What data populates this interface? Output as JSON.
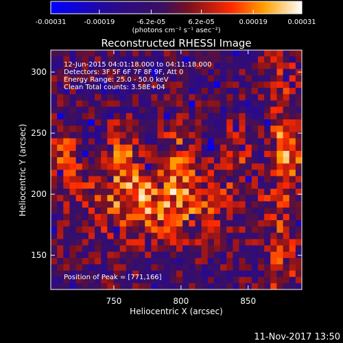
{
  "colorbar": {
    "tick_labels": [
      "-0.00031",
      "-0.00019",
      "-6.2e-05",
      "6.2e-05",
      "0.00019",
      "0.00031"
    ],
    "tick_values": [
      -0.00031,
      -0.00019,
      -6.2e-05,
      6.2e-05,
      0.00019,
      0.00031
    ],
    "range": [
      -0.00031,
      0.00031
    ],
    "units_label": "(photons cm⁻² s⁻¹ asec⁻²)"
  },
  "chart_data": {
    "type": "heatmap",
    "title": "Reconstructed RHESSI Image",
    "xlabel": "Heliocentric X (arcsec)",
    "ylabel": "Heliocentric Y (arcsec)",
    "xlim": [
      703,
      890
    ],
    "ylim": [
      122,
      318
    ],
    "x_ticks": [
      750,
      800,
      850
    ],
    "y_ticks": [
      150,
      200,
      250,
      300
    ],
    "annotations": [
      "12-Jun-2015 04:01:18.000 to 04:11:18.000",
      "Detectors: 3F 5F 6F 7F 8F 9F, Att 0",
      "Energy Range: 25.0 - 50.0 keV",
      "Clean     Total counts: 3.58E+04"
    ],
    "peak_label": "Position of Peak = [771,166]",
    "peak": [
      771,
      166
    ],
    "colormap": "blue-purple-red-yellow-white",
    "grid": false
  },
  "timestamp": "11-Nov-2017 13:50"
}
